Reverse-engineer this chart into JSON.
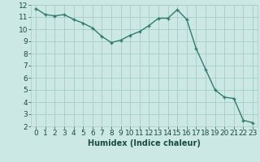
{
  "x": [
    0,
    1,
    2,
    3,
    4,
    5,
    6,
    7,
    8,
    9,
    10,
    11,
    12,
    13,
    14,
    15,
    16,
    17,
    18,
    19,
    20,
    21,
    22,
    23
  ],
  "y": [
    11.7,
    11.2,
    11.1,
    11.2,
    10.8,
    10.5,
    10.1,
    9.4,
    8.9,
    9.1,
    9.5,
    9.8,
    10.3,
    10.9,
    10.9,
    11.6,
    10.8,
    8.4,
    6.7,
    5.0,
    4.4,
    4.3,
    2.5,
    2.3
  ],
  "line_color": "#2e7d6e",
  "marker": "+",
  "marker_color": "#2e7d6e",
  "bg_color": "#cce8e4",
  "grid_color": "#a8ccc8",
  "xlabel": "Humidex (Indice chaleur)",
  "xlim": [
    -0.5,
    23.5
  ],
  "ylim": [
    2,
    12
  ],
  "xticks": [
    0,
    1,
    2,
    3,
    4,
    5,
    6,
    7,
    8,
    9,
    10,
    11,
    12,
    13,
    14,
    15,
    16,
    17,
    18,
    19,
    20,
    21,
    22,
    23
  ],
  "yticks": [
    2,
    3,
    4,
    5,
    6,
    7,
    8,
    9,
    10,
    11,
    12
  ],
  "xlabel_fontsize": 7,
  "tick_fontsize": 6.5,
  "linewidth": 1.0,
  "markersize": 3.5,
  "tick_color": "#1a4a40"
}
